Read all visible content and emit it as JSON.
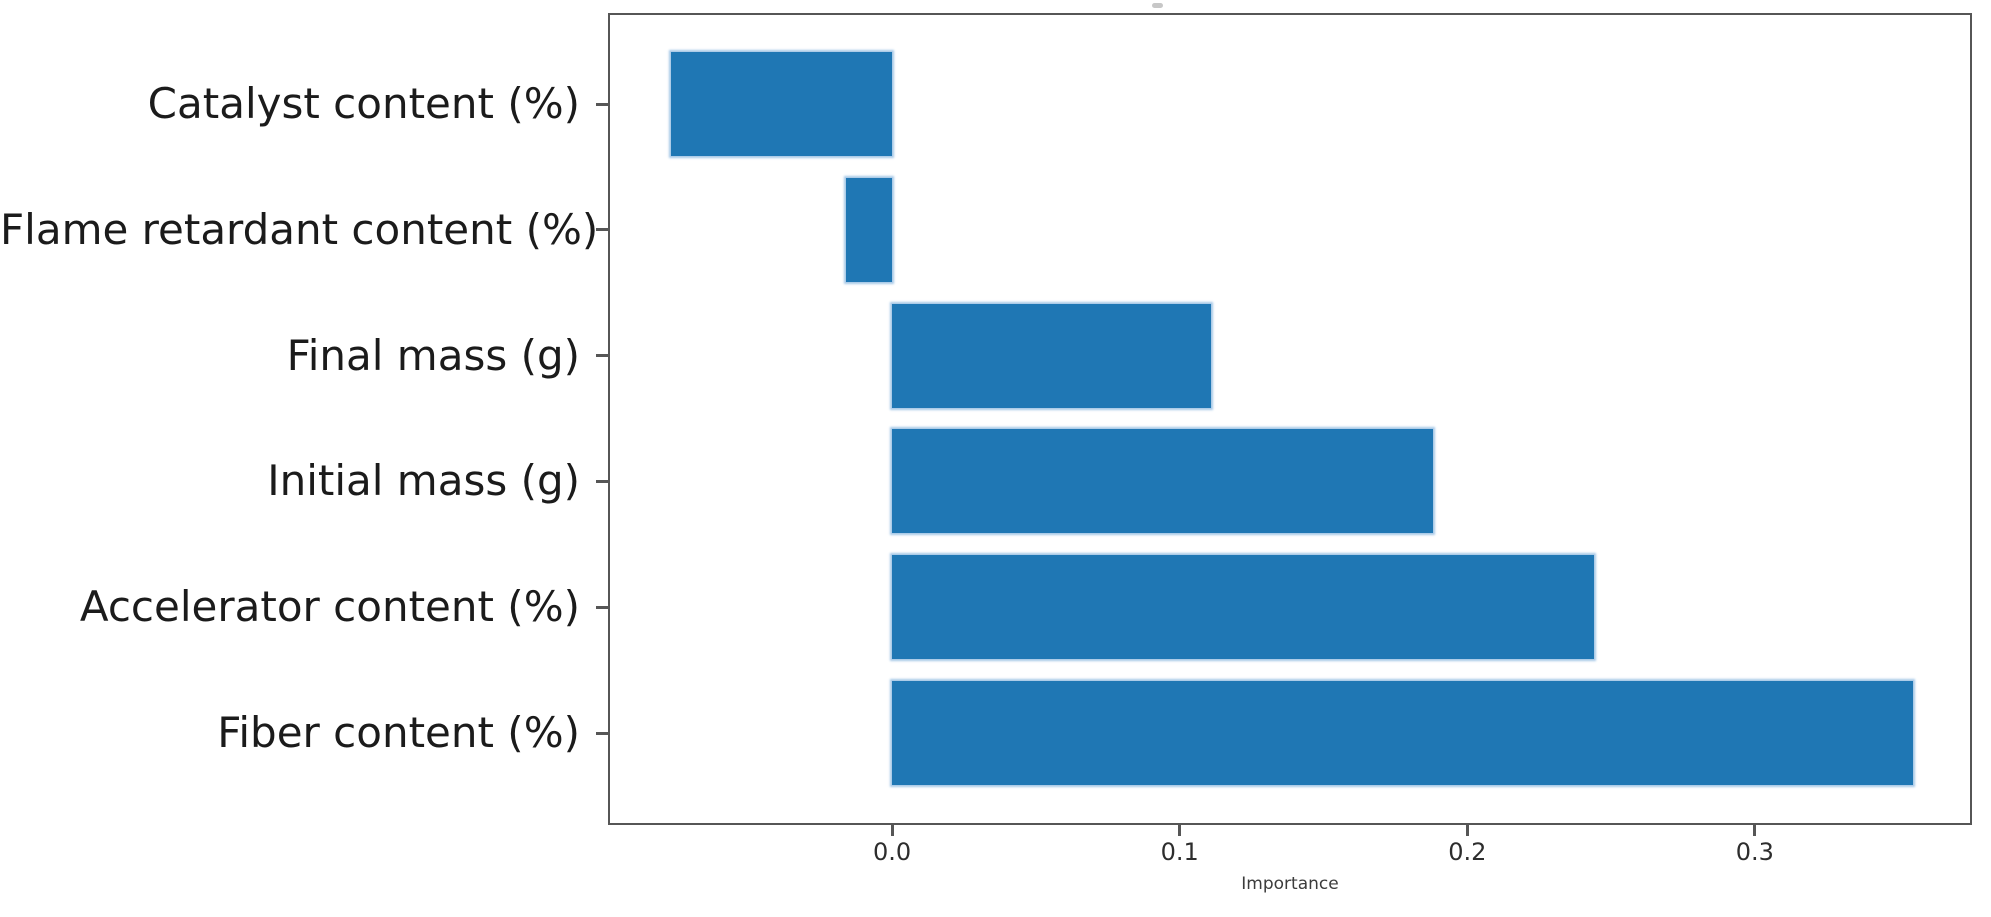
{
  "figure": {
    "background": "#ffffff"
  },
  "chart_data": {
    "type": "bar",
    "orientation": "horizontal",
    "title": "",
    "xlabel": "Importance",
    "ylabel": "",
    "categories": [
      "Catalyst content (%)",
      "Flame retardant content (%)",
      "Final mass (g)",
      "Initial mass (g)",
      "Accelerator content (%)",
      "Fiber content (%)"
    ],
    "values": [
      -0.077,
      -0.016,
      0.111,
      0.188,
      0.244,
      0.355
    ],
    "x_ticks": [
      0.0,
      0.1,
      0.2,
      0.3
    ],
    "x_tick_labels": [
      "0.0",
      "0.1",
      "0.2",
      "0.3"
    ],
    "xlim": [
      -0.0988,
      0.3755
    ],
    "bar_color": "#1f77b4",
    "axis_color": "#565656",
    "grid": false,
    "legend_position": "none"
  }
}
